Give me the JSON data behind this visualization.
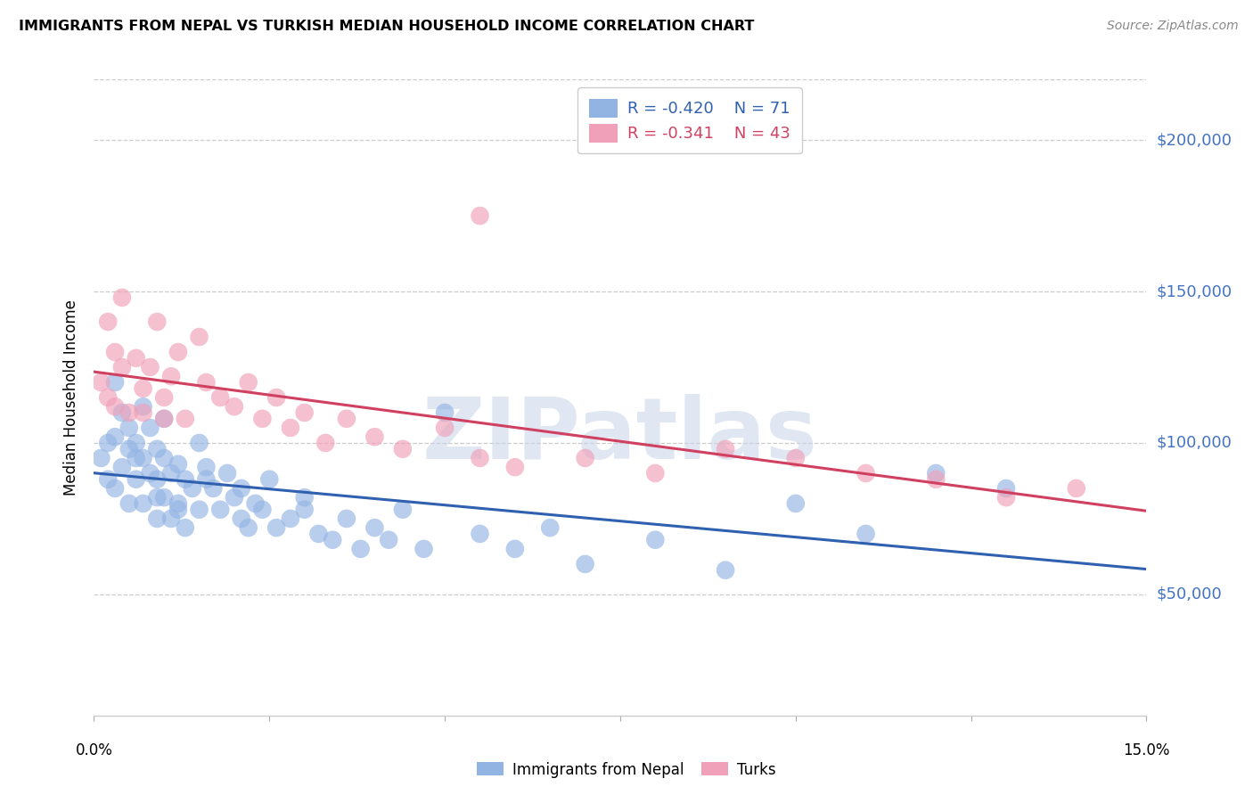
{
  "title": "IMMIGRANTS FROM NEPAL VS TURKISH MEDIAN HOUSEHOLD INCOME CORRELATION CHART",
  "source": "Source: ZipAtlas.com",
  "ylabel": "Median Household Income",
  "x_min": 0.0,
  "x_max": 0.15,
  "y_min": 10000,
  "y_max": 220000,
  "yticks": [
    50000,
    100000,
    150000,
    200000
  ],
  "ytick_labels": [
    "$50,000",
    "$100,000",
    "$150,000",
    "$200,000"
  ],
  "nepal_color": "#92b4e3",
  "turks_color": "#f0a0b8",
  "nepal_line_color": "#3060b0",
  "turks_line_color": "#d04060",
  "nepal_R": -0.42,
  "nepal_N": 71,
  "turks_R": -0.341,
  "turks_N": 43,
  "watermark": "ZIPatlas",
  "legend_label_nepal": "Immigrants from Nepal",
  "legend_label_turks": "Turks",
  "tick_label_color": "#4472c4",
  "tick_label_fontsize": 13,
  "title_fontsize": 11.5,
  "nepal_x": [
    0.001,
    0.002,
    0.002,
    0.003,
    0.003,
    0.004,
    0.004,
    0.005,
    0.005,
    0.005,
    0.006,
    0.006,
    0.007,
    0.007,
    0.007,
    0.008,
    0.008,
    0.009,
    0.009,
    0.009,
    0.01,
    0.01,
    0.01,
    0.011,
    0.011,
    0.012,
    0.012,
    0.013,
    0.013,
    0.014,
    0.015,
    0.015,
    0.016,
    0.017,
    0.018,
    0.019,
    0.02,
    0.021,
    0.022,
    0.023,
    0.024,
    0.025,
    0.026,
    0.028,
    0.03,
    0.032,
    0.034,
    0.036,
    0.038,
    0.04,
    0.042,
    0.044,
    0.047,
    0.05,
    0.055,
    0.06,
    0.065,
    0.07,
    0.08,
    0.09,
    0.1,
    0.11,
    0.12,
    0.13,
    0.003,
    0.006,
    0.009,
    0.012,
    0.016,
    0.021,
    0.03
  ],
  "nepal_y": [
    95000,
    100000,
    88000,
    102000,
    85000,
    110000,
    92000,
    98000,
    80000,
    105000,
    100000,
    88000,
    112000,
    95000,
    80000,
    105000,
    90000,
    98000,
    88000,
    75000,
    95000,
    82000,
    108000,
    90000,
    75000,
    93000,
    80000,
    88000,
    72000,
    85000,
    100000,
    78000,
    92000,
    85000,
    78000,
    90000,
    82000,
    85000,
    72000,
    80000,
    78000,
    88000,
    72000,
    75000,
    82000,
    70000,
    68000,
    75000,
    65000,
    72000,
    68000,
    78000,
    65000,
    110000,
    70000,
    65000,
    72000,
    60000,
    68000,
    58000,
    80000,
    70000,
    90000,
    85000,
    120000,
    95000,
    82000,
    78000,
    88000,
    75000,
    78000
  ],
  "turks_x": [
    0.001,
    0.002,
    0.003,
    0.003,
    0.004,
    0.005,
    0.006,
    0.007,
    0.008,
    0.009,
    0.01,
    0.011,
    0.012,
    0.013,
    0.015,
    0.016,
    0.018,
    0.02,
    0.022,
    0.024,
    0.026,
    0.028,
    0.03,
    0.033,
    0.036,
    0.04,
    0.044,
    0.05,
    0.055,
    0.06,
    0.07,
    0.08,
    0.09,
    0.1,
    0.11,
    0.12,
    0.13,
    0.14,
    0.002,
    0.004,
    0.007,
    0.01,
    0.055
  ],
  "turks_y": [
    120000,
    115000,
    130000,
    112000,
    125000,
    110000,
    128000,
    118000,
    125000,
    140000,
    115000,
    122000,
    130000,
    108000,
    135000,
    120000,
    115000,
    112000,
    120000,
    108000,
    115000,
    105000,
    110000,
    100000,
    108000,
    102000,
    98000,
    105000,
    95000,
    92000,
    95000,
    90000,
    98000,
    95000,
    90000,
    88000,
    82000,
    85000,
    140000,
    148000,
    110000,
    108000,
    175000
  ]
}
